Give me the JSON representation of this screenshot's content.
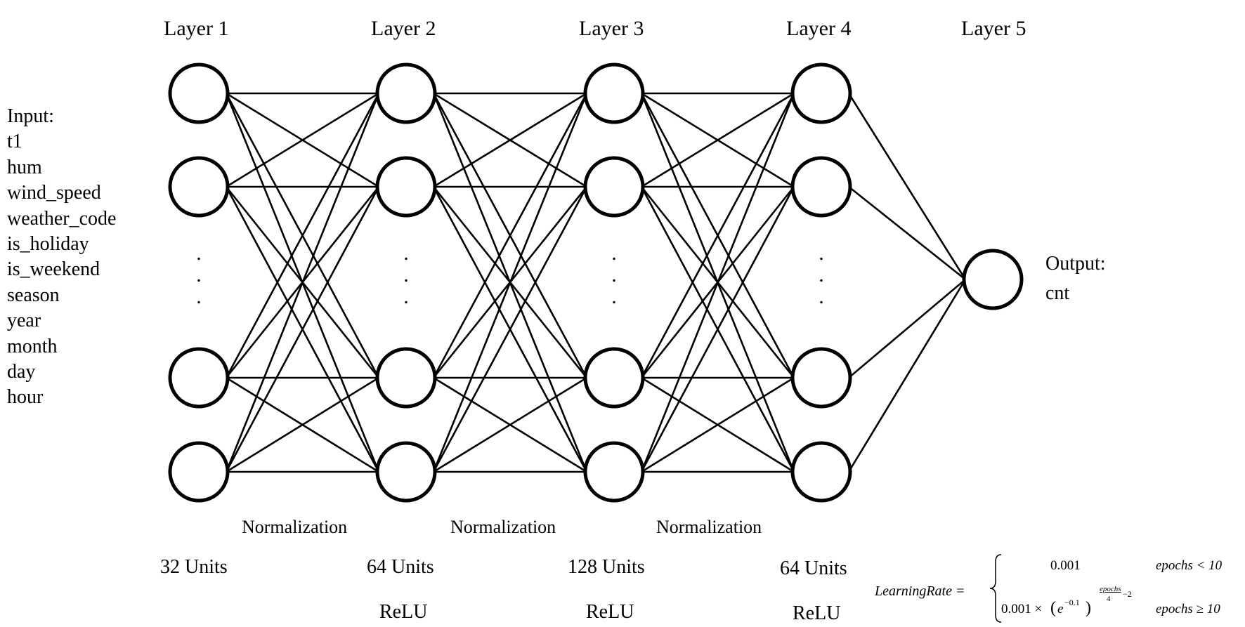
{
  "layers": [
    {
      "title": "Layer 1",
      "units": "32 Units",
      "activation": ""
    },
    {
      "title": "Layer 2",
      "units": "64 Units",
      "activation": "ReLU"
    },
    {
      "title": "Layer 3",
      "units": "128 Units",
      "activation": "ReLU"
    },
    {
      "title": "Layer 4",
      "units": "64 Units",
      "activation": "ReLU"
    },
    {
      "title": "Layer 5",
      "units": "",
      "activation": ""
    }
  ],
  "normalization": [
    "Normalization",
    "Normalization",
    "Normalization"
  ],
  "input": {
    "heading": "Input:",
    "features": [
      "t1",
      "hum",
      "wind_speed",
      "weather_code",
      "is_holiday",
      "is_weekend",
      "season",
      "year",
      "month",
      "day",
      "hour"
    ]
  },
  "output": {
    "heading": "Output:",
    "target": "cnt"
  },
  "ellipsis": ".",
  "learning_rate": {
    "lhs": "LearningRate =",
    "case1_value": "0.001",
    "case1_condition": "epochs < 10",
    "case2_value_prefix": "0.001 ×",
    "case2_base": "e",
    "case2_base_exp": "−0.1",
    "case2_exp_num": "epochs",
    "case2_exp_den": "4",
    "case2_exp_tail": "−2",
    "case2_condition": "epochs ≥ 10"
  }
}
